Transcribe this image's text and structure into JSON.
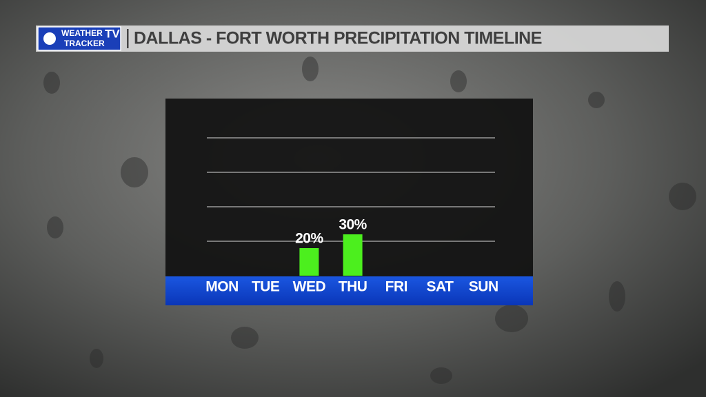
{
  "header": {
    "logo_line1": "WEATHER",
    "logo_tv": "TV",
    "logo_line2": "TRACKER"
  },
  "chart_data": {
    "type": "bar",
    "title": "DALLAS - FORT WORTH PRECIPITATION TIMELINE",
    "categories": [
      "MON",
      "TUE",
      "WED",
      "THU",
      "FRI",
      "SAT",
      "SUN"
    ],
    "values": [
      0,
      0,
      20,
      30,
      0,
      0,
      0
    ],
    "value_labels": [
      null,
      null,
      "20%",
      "30%",
      null,
      null,
      null
    ],
    "color": "#4cef1e",
    "ylim": [
      0,
      100
    ],
    "yticks": [
      25,
      50,
      75,
      100
    ],
    "grid": true
  }
}
